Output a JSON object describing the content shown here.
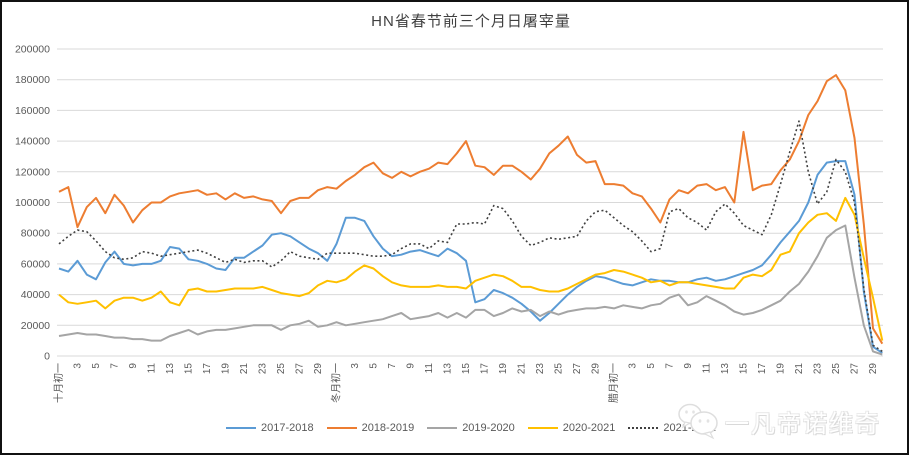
{
  "chart_data": {
    "type": "line",
    "title": "HN省春节前三个月日屠宰量",
    "xlabel": "",
    "ylabel": "",
    "ylim": [
      0,
      200000
    ],
    "y_tick_step": 20000,
    "y_tick_labels": [
      "0",
      "20000",
      "40000",
      "60000",
      "80000",
      "100000",
      "120000",
      "140000",
      "160000",
      "180000",
      "200000"
    ],
    "grid": "horizontal",
    "legend_position": "bottom",
    "n_points": 90,
    "x_points_per_label": 2,
    "x_tick_labels": [
      "十月初一",
      "3",
      "5",
      "7",
      "9",
      "11",
      "13",
      "15",
      "17",
      "19",
      "21",
      "23",
      "25",
      "27",
      "29",
      "冬月初一",
      "3",
      "5",
      "7",
      "9",
      "11",
      "13",
      "15",
      "17",
      "19",
      "21",
      "23",
      "25",
      "27",
      "29",
      "腊月初一",
      "3",
      "5",
      "7",
      "9",
      "11",
      "13",
      "15",
      "17",
      "19",
      "21",
      "23",
      "25",
      "27",
      "29"
    ],
    "series": [
      {
        "name": "2017-2018",
        "color": "#5B9BD5",
        "style": "solid",
        "values": [
          57000,
          55000,
          62000,
          53000,
          50000,
          61000,
          68000,
          60000,
          59000,
          60000,
          60000,
          62000,
          71000,
          70000,
          63000,
          62000,
          60000,
          57000,
          56000,
          64000,
          64000,
          68000,
          72000,
          79000,
          80000,
          78000,
          74000,
          70000,
          67000,
          62000,
          73000,
          90000,
          90000,
          88000,
          78000,
          70000,
          65000,
          66000,
          68000,
          69000,
          67000,
          65000,
          70000,
          67000,
          62000,
          35000,
          37000,
          43000,
          41000,
          38000,
          34000,
          29000,
          23000,
          28000,
          34000,
          40000,
          45000,
          49000,
          52000,
          51000,
          49000,
          47000,
          46000,
          48000,
          50000,
          49000,
          49000,
          48000,
          48000,
          50000,
          51000,
          49000,
          50000,
          52000,
          54000,
          56000,
          59000,
          66000,
          74000,
          81000,
          88000,
          100000,
          118000,
          126000,
          127000,
          127000,
          105000,
          42000,
          6000,
          2000
        ]
      },
      {
        "name": "2018-2019",
        "color": "#ED7D31",
        "style": "solid",
        "values": [
          107000,
          110000,
          84000,
          97000,
          103000,
          93000,
          105000,
          98000,
          87000,
          95000,
          100000,
          100000,
          104000,
          106000,
          107000,
          108000,
          105000,
          106000,
          102000,
          106000,
          103000,
          104000,
          102000,
          101000,
          93000,
          101000,
          103000,
          103000,
          108000,
          110000,
          109000,
          114000,
          118000,
          123000,
          126000,
          119000,
          116000,
          120000,
          117000,
          120000,
          122000,
          126000,
          125000,
          132000,
          140000,
          124000,
          123000,
          118000,
          124000,
          124000,
          120000,
          115000,
          122000,
          132000,
          137000,
          143000,
          131000,
          126000,
          127000,
          112000,
          112000,
          111000,
          106000,
          104000,
          96000,
          87000,
          102000,
          108000,
          106000,
          111000,
          112000,
          108000,
          110000,
          100000,
          146000,
          108000,
          111000,
          112000,
          121000,
          128000,
          140000,
          157000,
          166000,
          179000,
          183000,
          173000,
          142000,
          86000,
          18000,
          8000
        ]
      },
      {
        "name": "2019-2020",
        "color": "#A5A5A5",
        "style": "solid",
        "values": [
          13000,
          14000,
          15000,
          14000,
          14000,
          13000,
          12000,
          12000,
          11000,
          11000,
          10000,
          10000,
          13000,
          15000,
          17000,
          14000,
          16000,
          17000,
          17000,
          18000,
          19000,
          20000,
          20000,
          20000,
          17000,
          20000,
          21000,
          23000,
          19000,
          20000,
          22000,
          20000,
          21000,
          22000,
          23000,
          24000,
          26000,
          28000,
          24000,
          25000,
          26000,
          28000,
          25000,
          28000,
          25000,
          30000,
          30000,
          26000,
          28000,
          31000,
          29000,
          30000,
          26000,
          29000,
          27000,
          29000,
          30000,
          31000,
          31000,
          32000,
          31000,
          33000,
          32000,
          31000,
          33000,
          34000,
          38000,
          40000,
          33000,
          35000,
          39000,
          36000,
          33000,
          29000,
          27000,
          28000,
          30000,
          33000,
          36000,
          42000,
          47000,
          55000,
          65000,
          77000,
          82000,
          85000,
          51000,
          20000,
          3000,
          1000
        ]
      },
      {
        "name": "2020-2021",
        "color": "#FFC000",
        "style": "solid",
        "values": [
          40000,
          35000,
          34000,
          35000,
          36000,
          31000,
          36000,
          38000,
          38000,
          36000,
          38000,
          42000,
          35000,
          33000,
          43000,
          44000,
          42000,
          42000,
          43000,
          44000,
          44000,
          44000,
          45000,
          43000,
          41000,
          40000,
          39000,
          41000,
          46000,
          49000,
          48000,
          50000,
          55000,
          59000,
          57000,
          52000,
          48000,
          46000,
          45000,
          45000,
          45000,
          46000,
          45000,
          45000,
          44000,
          49000,
          51000,
          53000,
          52000,
          49000,
          45000,
          45000,
          43000,
          42000,
          42000,
          44000,
          47000,
          50000,
          53000,
          54000,
          56000,
          55000,
          53000,
          51000,
          48000,
          49000,
          46000,
          48000,
          48000,
          47000,
          46000,
          45000,
          44000,
          44000,
          51000,
          53000,
          52000,
          56000,
          66000,
          68000,
          80000,
          87000,
          92000,
          93000,
          88000,
          103000,
          92000,
          64000,
          38000,
          10000
        ]
      },
      {
        "name": "2021-2022",
        "color": "#404040",
        "style": "dotted",
        "values": [
          73000,
          78000,
          82000,
          81000,
          75000,
          68000,
          64000,
          63000,
          64000,
          68000,
          67000,
          65000,
          66000,
          67000,
          68000,
          69000,
          67000,
          64000,
          61000,
          63000,
          61000,
          62000,
          62000,
          58000,
          62000,
          68000,
          65000,
          64000,
          63000,
          67000,
          67000,
          67000,
          67000,
          66000,
          65000,
          65000,
          66000,
          70000,
          73000,
          73000,
          70000,
          75000,
          74000,
          86000,
          86000,
          87000,
          86000,
          98000,
          96000,
          88000,
          78000,
          72000,
          74000,
          77000,
          76000,
          77000,
          78000,
          88000,
          94000,
          95000,
          90000,
          85000,
          81000,
          75000,
          68000,
          70000,
          94000,
          96000,
          90000,
          87000,
          82000,
          94000,
          99000,
          93000,
          85000,
          82000,
          79000,
          92000,
          112000,
          133000,
          153000,
          120000,
          99000,
          107000,
          128000,
          120000,
          100000,
          44000,
          7000,
          3000
        ]
      }
    ]
  },
  "watermark": {
    "text": "一凡帝诺维奇",
    "icon": "wechat-chat-bubbles-icon"
  }
}
